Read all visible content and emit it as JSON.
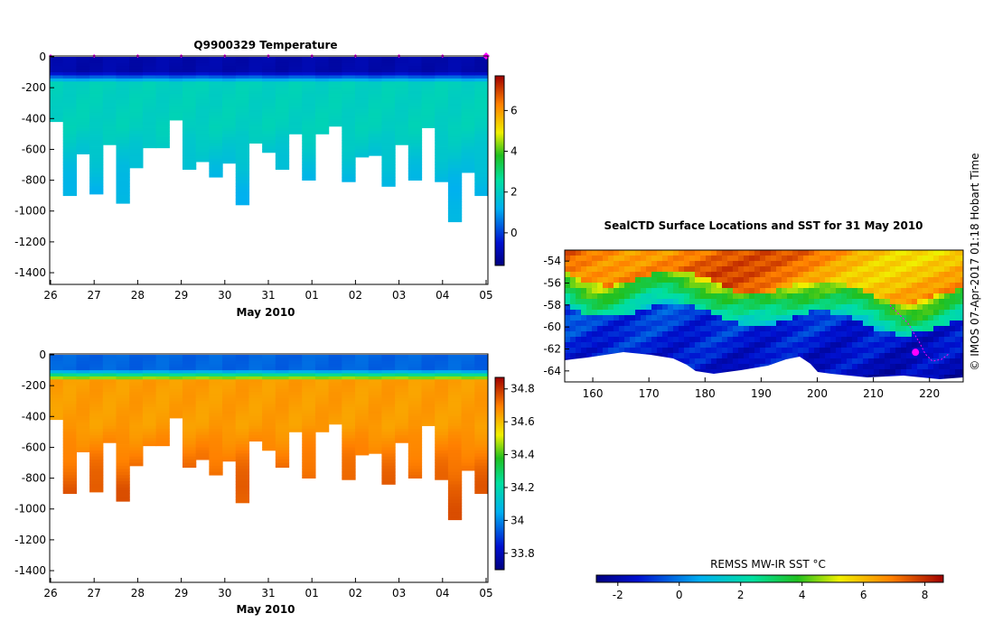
{
  "chart_data": [
    {
      "type": "heatmap",
      "title": "Q9900329  Temperature",
      "xlabel": "May 2010",
      "ylabel": "",
      "x_ticks": [
        "26",
        "27",
        "28",
        "29",
        "30",
        "31",
        "01",
        "02",
        "03",
        "04",
        "05"
      ],
      "y_ticks": [
        "0",
        "-200",
        "-400",
        "-600",
        "-800",
        "-1000",
        "-1200",
        "-1400"
      ],
      "ylim": [
        -1470,
        0
      ],
      "colorbar": {
        "min": -1.6,
        "max": 7.7,
        "ticks": [
          "0",
          "2",
          "4",
          "6"
        ],
        "tick_values": [
          0,
          2,
          4,
          6
        ]
      },
      "profile_depths_m": [
        420,
        900,
        630,
        890,
        570,
        950,
        720,
        590,
        590,
        410,
        730,
        680,
        780,
        690,
        960,
        560,
        620,
        730,
        500,
        800,
        500,
        450,
        810,
        650,
        640,
        840,
        570,
        800,
        460,
        810,
        1070,
        750,
        900
      ],
      "surface_value": -1.0,
      "mid_value": 2.1,
      "deep_value": 1.3,
      "markers": "magenta diamonds at daily profile positions"
    },
    {
      "type": "heatmap",
      "title": "",
      "xlabel": "May 2010",
      "ylabel": "",
      "x_ticks": [
        "26",
        "27",
        "28",
        "29",
        "30",
        "31",
        "01",
        "02",
        "03",
        "04",
        "05"
      ],
      "y_ticks": [
        "0",
        "-200",
        "-400",
        "-600",
        "-800",
        "-1000",
        "-1200",
        "-1400"
      ],
      "ylim": [
        -1470,
        0
      ],
      "colorbar": {
        "min": 33.7,
        "max": 34.87,
        "ticks": [
          "33.8",
          "34",
          "34.2",
          "34.4",
          "34.6",
          "34.8"
        ],
        "tick_values": [
          33.8,
          34.0,
          34.2,
          34.4,
          34.6,
          34.8
        ]
      },
      "profile_depths_m": [
        420,
        900,
        630,
        890,
        570,
        950,
        720,
        590,
        590,
        410,
        730,
        680,
        780,
        690,
        960,
        560,
        620,
        730,
        500,
        800,
        500,
        450,
        810,
        650,
        640,
        840,
        570,
        800,
        460,
        810,
        1070,
        750,
        900
      ],
      "surface_value": 33.95,
      "mid_value": 34.65,
      "deep_value": 34.75
    },
    {
      "type": "heatmap",
      "title": "SealCTD Surface Locations and SST for 31 May 2010",
      "xlabel": "",
      "ylabel": "",
      "x_ticks": [
        "160",
        "170",
        "180",
        "190",
        "200",
        "210",
        "220"
      ],
      "x_values": [
        160,
        170,
        180,
        190,
        200,
        210,
        220
      ],
      "y_ticks": [
        "-54",
        "-56",
        "-58",
        "-60",
        "-62",
        "-64"
      ],
      "y_values": [
        -54,
        -56,
        -58,
        -60,
        -62,
        -64
      ],
      "xlim": [
        155,
        226
      ],
      "ylim": [
        -65,
        -53
      ],
      "colorbar": {
        "label": "REMSS MW-IR SST °C",
        "min": -2.7,
        "max": 8.6,
        "ticks": [
          "-2",
          "0",
          "2",
          "4",
          "6",
          "8"
        ],
        "tick_values": [
          -2,
          0,
          2,
          4,
          6,
          8
        ]
      },
      "sst_north": 7.5,
      "sst_south": -1.5,
      "seal_location": [
        217.5,
        -62.3
      ]
    }
  ],
  "side_caption": "© IMOS 07-Apr-2017 01:18 Hobart Time",
  "colors": {
    "marker": "#ff00ff",
    "frame": "#000000",
    "background": "#ffffff"
  }
}
